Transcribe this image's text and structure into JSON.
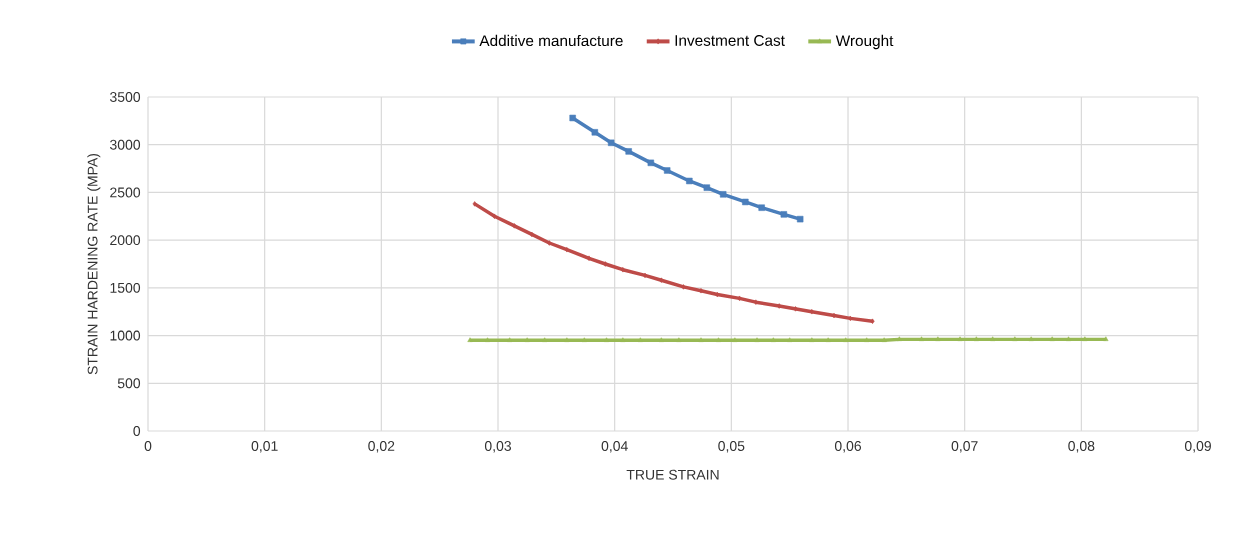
{
  "chart_data": {
    "type": "line",
    "xlabel": "TRUE STRAIN",
    "ylabel": "STRAIN HARDENING RATE (MPA)",
    "xlim": [
      0,
      0.09
    ],
    "ylim": [
      0,
      3500
    ],
    "xticks": [
      0,
      {
        "value": 0.01,
        "label": "0,01"
      },
      {
        "value": 0.02,
        "label": "0,02"
      },
      {
        "value": 0.03,
        "label": "0,03"
      },
      {
        "value": 0.04,
        "label": "0,04"
      },
      {
        "value": 0.05,
        "label": "0,05"
      },
      {
        "value": 0.06,
        "label": "0,06"
      },
      {
        "value": 0.07,
        "label": "0,07"
      },
      {
        "value": 0.08,
        "label": "0,08"
      },
      {
        "value": 0.09,
        "label": "0,09"
      }
    ],
    "yticks": [
      0,
      500,
      1000,
      1500,
      2000,
      2500,
      3000,
      3500
    ],
    "grid": true,
    "legend": "top",
    "series": [
      {
        "name": "Additive manufacture",
        "color": "#4a7ebb",
        "marker": "square",
        "x": [
          0.0364,
          0.0383,
          0.0397,
          0.0412,
          0.0431,
          0.0445,
          0.0464,
          0.0479,
          0.0493,
          0.0512,
          0.0526,
          0.0545,
          0.0559
        ],
        "values": [
          3280,
          3130,
          3020,
          2930,
          2810,
          2730,
          2620,
          2550,
          2480,
          2400,
          2340,
          2270,
          2220
        ]
      },
      {
        "name": "Investment Cast",
        "color": "#be4b48",
        "marker": "diamond",
        "x": [
          0.028,
          0.0297,
          0.0314,
          0.0329,
          0.0344,
          0.0359,
          0.0378,
          0.0392,
          0.0407,
          0.0426,
          0.044,
          0.0459,
          0.0474,
          0.0488,
          0.0507,
          0.0521,
          0.0541,
          0.0555,
          0.0569,
          0.0588,
          0.0602,
          0.0621
        ],
        "values": [
          2380,
          2250,
          2150,
          2060,
          1970,
          1900,
          1810,
          1750,
          1690,
          1630,
          1580,
          1510,
          1470,
          1430,
          1390,
          1350,
          1310,
          1280,
          1250,
          1210,
          1180,
          1150
        ]
      },
      {
        "name": "Wrought",
        "color": "#98b954",
        "marker": "triangle",
        "x": [
          0.0276,
          0.0291,
          0.031,
          0.0325,
          0.034,
          0.0359,
          0.0374,
          0.0393,
          0.0407,
          0.0422,
          0.044,
          0.0455,
          0.0474,
          0.0489,
          0.0503,
          0.0522,
          0.0536,
          0.055,
          0.0569,
          0.0583,
          0.0598,
          0.0616,
          0.0631,
          0.0644,
          0.0663,
          0.0677,
          0.0696,
          0.071,
          0.0724,
          0.0743,
          0.0757,
          0.0775,
          0.0789,
          0.0803,
          0.0821
        ],
        "values": [
          950,
          950,
          950,
          950,
          950,
          950,
          950,
          950,
          950,
          950,
          950,
          950,
          950,
          950,
          950,
          950,
          950,
          950,
          950,
          950,
          950,
          950,
          950,
          960,
          960,
          960,
          960,
          960,
          960,
          960,
          960,
          960,
          960,
          960,
          960
        ]
      }
    ]
  }
}
